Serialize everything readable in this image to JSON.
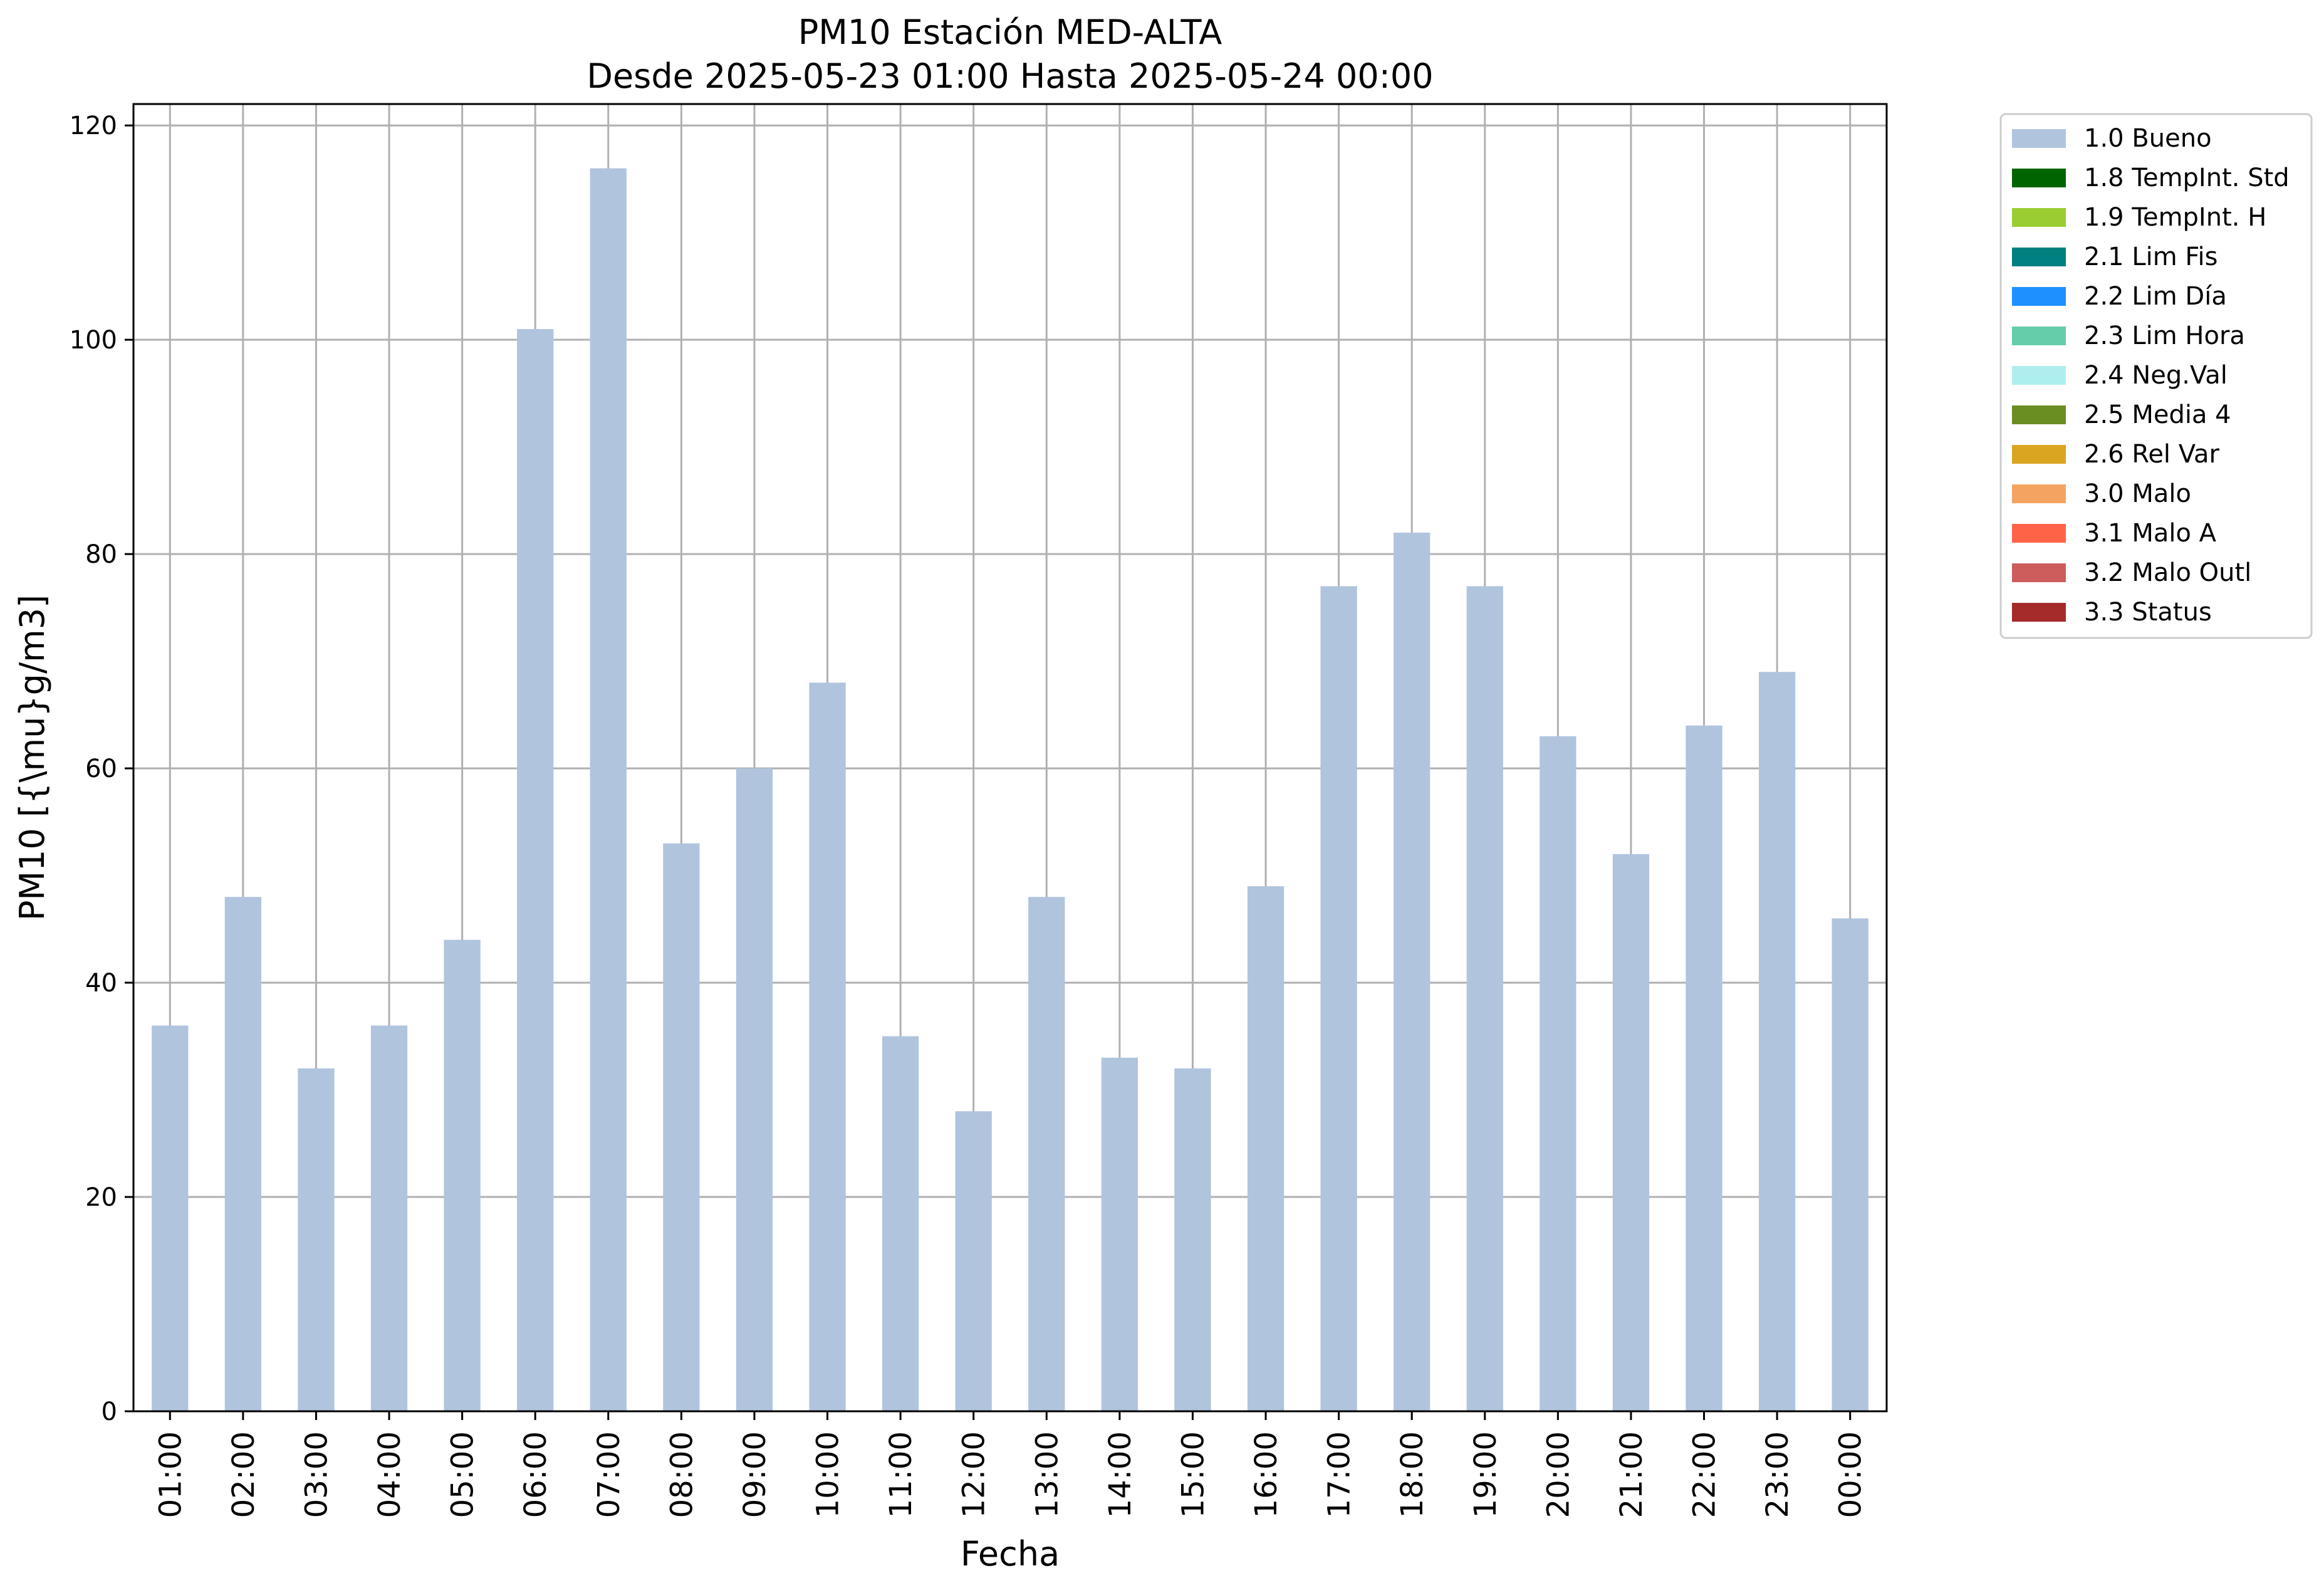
{
  "chart_data": {
    "type": "bar",
    "title": "PM10 Estación MED-ALTA",
    "subtitle": "Desde 2025-05-23 01:00 Hasta 2025-05-24 00:00",
    "xlabel": "Fecha",
    "ylabel": "PM10 [{\\mu}g/m3]",
    "ylim": [
      0,
      122
    ],
    "yticks": [
      0,
      20,
      40,
      60,
      80,
      100,
      120
    ],
    "grid": true,
    "legend_position": "outside-right",
    "bar_color": "#b0c4de",
    "categories": [
      "01:00",
      "02:00",
      "03:00",
      "04:00",
      "05:00",
      "06:00",
      "07:00",
      "08:00",
      "09:00",
      "10:00",
      "11:00",
      "12:00",
      "13:00",
      "14:00",
      "15:00",
      "16:00",
      "17:00",
      "18:00",
      "19:00",
      "20:00",
      "21:00",
      "22:00",
      "23:00",
      "00:00"
    ],
    "series": [
      {
        "name": "1.0 Bueno",
        "color": "#b0c4de",
        "values": [
          36,
          48,
          32,
          36,
          44,
          101,
          116,
          53,
          60,
          68,
          35,
          28,
          48,
          33,
          32,
          49,
          77,
          82,
          77,
          63,
          52,
          64,
          69,
          46
        ]
      }
    ],
    "legend": [
      {
        "label": "1.0 Bueno",
        "color": "#b0c4de"
      },
      {
        "label": "1.8 TempInt. Std",
        "color": "#006400"
      },
      {
        "label": "1.9 TempInt. H",
        "color": "#9acd32"
      },
      {
        "label": "2.1 Lim Fis",
        "color": "#008080"
      },
      {
        "label": "2.2 Lim Día",
        "color": "#1e90ff"
      },
      {
        "label": "2.3 Lim Hora",
        "color": "#66cdaa"
      },
      {
        "label": "2.4 Neg.Val",
        "color": "#afeeee"
      },
      {
        "label": "2.5 Media 4",
        "color": "#6b8e23"
      },
      {
        "label": "2.6 Rel Var",
        "color": "#daa520"
      },
      {
        "label": "3.0 Malo",
        "color": "#f4a460"
      },
      {
        "label": "3.1 Malo A",
        "color": "#ff6347"
      },
      {
        "label": "3.2 Malo Outl",
        "color": "#cd5c5c"
      },
      {
        "label": "3.3 Status",
        "color": "#a52a2a"
      }
    ]
  }
}
